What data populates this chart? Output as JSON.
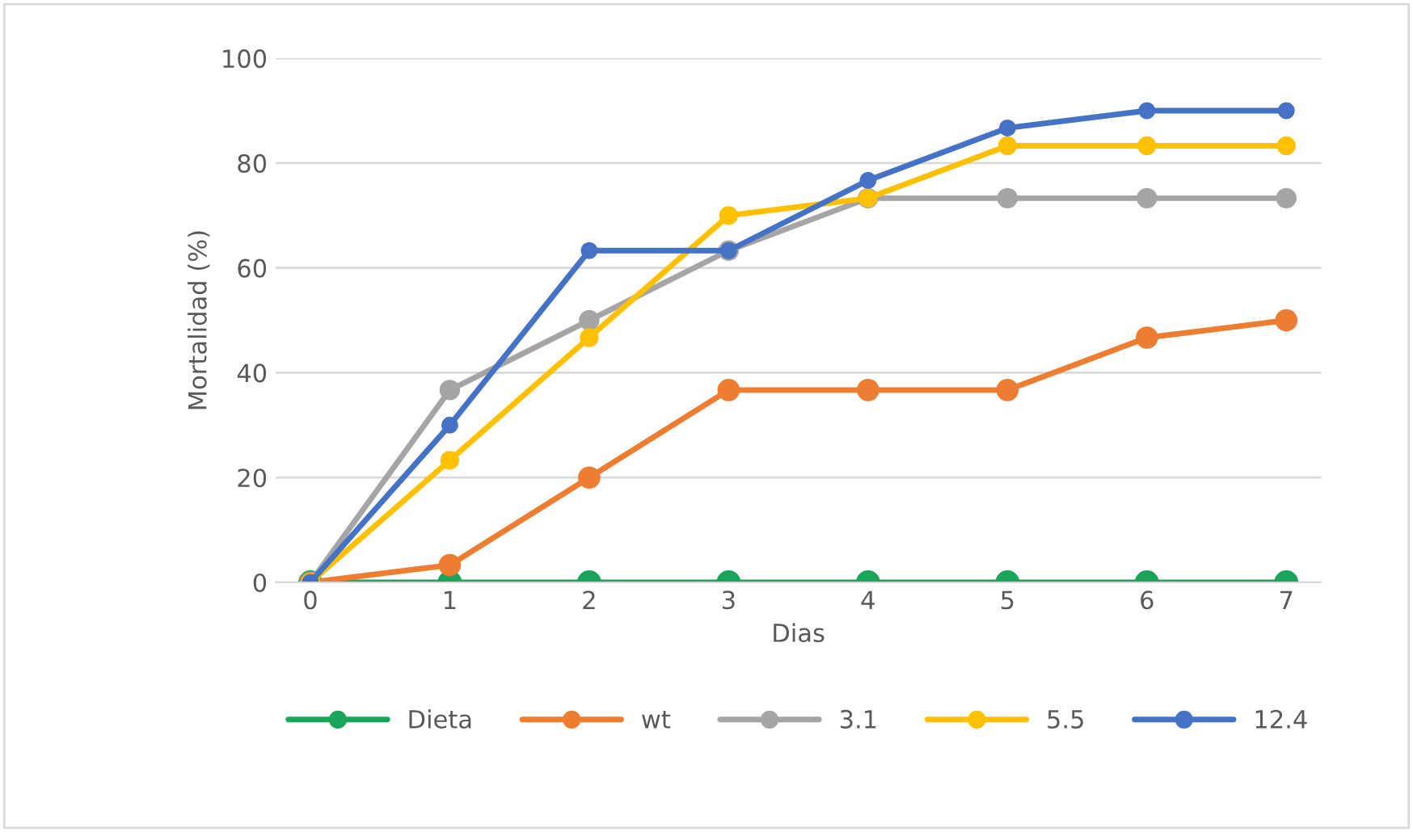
{
  "chart_data": {
    "type": "line",
    "xlabel": "Dias",
    "ylabel": "Mortalidad (%)",
    "categories": [
      "0",
      "1",
      "2",
      "3",
      "4",
      "5",
      "6",
      "7"
    ],
    "series": [
      {
        "name": "Dieta",
        "color": "#1aa55a",
        "values": [
          0,
          0,
          0,
          0,
          0,
          0,
          0,
          0
        ]
      },
      {
        "name": "wt",
        "color": "#ed7d31",
        "values": [
          0,
          3.3,
          20,
          36.7,
          36.7,
          36.7,
          46.7,
          50
        ]
      },
      {
        "name": "3.1",
        "color": "#a5a5a5",
        "values": [
          0,
          36.7,
          50,
          63.3,
          73.3,
          73.3,
          73.3,
          73.3
        ]
      },
      {
        "name": "5.5",
        "color": "#ffc000",
        "values": [
          0,
          23.3,
          46.7,
          70,
          73.3,
          83.3,
          83.3,
          83.3
        ]
      },
      {
        "name": "12.4",
        "color": "#4472c4",
        "values": [
          0,
          30,
          63.3,
          63.3,
          76.7,
          86.7,
          90,
          90
        ]
      }
    ],
    "ylim": [
      0,
      100
    ],
    "yticks": [
      0,
      20,
      40,
      60,
      80,
      100
    ],
    "grid": "y",
    "legend": "bottom",
    "marker": "circle",
    "line_style": "solid"
  }
}
